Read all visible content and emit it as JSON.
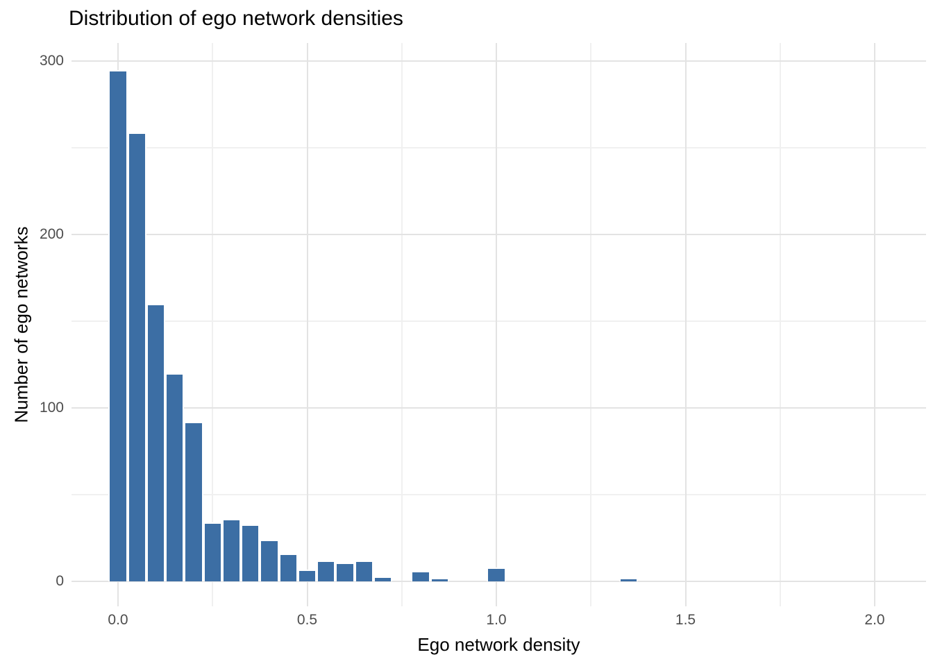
{
  "title": "Distribution of ego network densities",
  "x_axis": {
    "label": "Ego network density",
    "ticks": [
      {
        "value": 0.0,
        "label": "0.0"
      },
      {
        "value": 0.5,
        "label": "0.5"
      },
      {
        "value": 1.0,
        "label": "1.0"
      },
      {
        "value": 1.5,
        "label": "1.5"
      },
      {
        "value": 2.0,
        "label": "2.0"
      }
    ]
  },
  "y_axis": {
    "label": "Number of ego networks",
    "ticks": [
      {
        "value": 0,
        "label": "0"
      },
      {
        "value": 100,
        "label": "100"
      },
      {
        "value": 200,
        "label": "200"
      },
      {
        "value": 300,
        "label": "300"
      }
    ]
  },
  "chart_data": {
    "type": "bar",
    "subtype": "histogram",
    "title": "Distribution of ego network densities",
    "xlabel": "Ego network density",
    "ylabel": "Number of ego networks",
    "bin_width": 0.05,
    "bin_centers": [
      0.0,
      0.05,
      0.1,
      0.15,
      0.2,
      0.25,
      0.3,
      0.35,
      0.4,
      0.45,
      0.5,
      0.55,
      0.6,
      0.65,
      0.7,
      0.8,
      0.85,
      1.0,
      1.35
    ],
    "values": [
      295,
      259,
      160,
      120,
      92,
      34,
      36,
      33,
      24,
      16,
      7,
      12,
      11,
      12,
      3,
      6,
      2,
      8,
      2
    ],
    "xlim": [
      -0.12,
      2.14
    ],
    "ylim": [
      -14,
      310
    ],
    "x_major_breaks": [
      0.0,
      0.5,
      1.0,
      1.5,
      2.0
    ],
    "x_minor_breaks": [
      0.25,
      0.75,
      1.25,
      1.75
    ],
    "y_major_breaks": [
      0,
      100,
      200,
      300
    ],
    "y_minor_breaks": [
      50,
      150,
      250
    ],
    "grid": true,
    "legend": "none",
    "bar_color": "#3c6ea4",
    "bar_border_color": "#ffffff",
    "grid_major_color": "#e3e3e3",
    "grid_minor_color": "#f0f0f0",
    "tick_label_color": "#4d4d4d",
    "text_color": "#000000",
    "background_color": "#ffffff"
  }
}
